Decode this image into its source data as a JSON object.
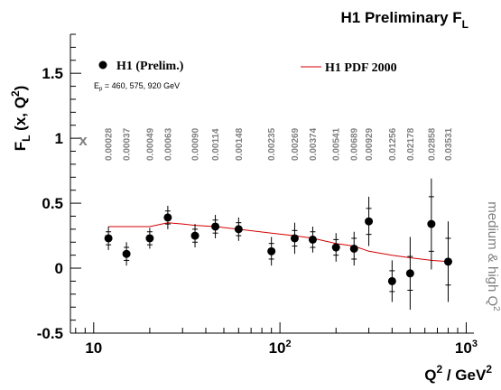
{
  "chart_data": {
    "type": "scatter",
    "title": "H1 Preliminary F",
    "title_sub": "L",
    "xlabel": {
      "base": "Q",
      "sup1": "2",
      "mid": " / GeV",
      "sup2": "2"
    },
    "ylabel": {
      "base": "F",
      "sub": "L",
      "rest": " (x, Q",
      "sup": "2",
      "end": ")"
    },
    "x_scale": "log",
    "xlim": [
      7.5,
      1100
    ],
    "ylim": [
      -0.5,
      1.8
    ],
    "x_ticks": [
      {
        "value": 10,
        "label": "10"
      },
      {
        "value": 100,
        "label": "10",
        "sup": "2"
      },
      {
        "value": 1000,
        "label": "10",
        "sup": "3"
      }
    ],
    "y_ticks": [
      {
        "value": -0.5,
        "label": "-0.5"
      },
      {
        "value": 0,
        "label": "0"
      },
      {
        "value": 0.5,
        "label": "0.5"
      },
      {
        "value": 1,
        "label": "1"
      },
      {
        "value": 1.5,
        "label": "1.5"
      }
    ],
    "x_values_label": "x",
    "side_label": {
      "text": "medium & high Q",
      "sup": "2"
    },
    "grid": false,
    "legend_position": "top",
    "colors": {
      "data": "#000000",
      "pdf": "#d40000",
      "annotation": "#808080"
    },
    "series": [
      {
        "name": "H1 (Prelim.)",
        "kind": "points",
        "sublabel": "E",
        "sublabel_sub": "p",
        "sublabel_rest": " = 460, 575, 920 GeV",
        "points": [
          {
            "q2": 12,
            "xbj": "0.00028",
            "fl": 0.23,
            "stat": 0.05,
            "tot": 0.09
          },
          {
            "q2": 15,
            "xbj": "0.00037",
            "fl": 0.11,
            "stat": 0.05,
            "tot": 0.09
          },
          {
            "q2": 20,
            "xbj": "0.00049",
            "fl": 0.23,
            "stat": 0.05,
            "tot": 0.08
          },
          {
            "q2": 25,
            "xbj": "0.00063",
            "fl": 0.39,
            "stat": 0.05,
            "tot": 0.09
          },
          {
            "q2": 35,
            "xbj": "0.00090",
            "fl": 0.25,
            "stat": 0.05,
            "tot": 0.09
          },
          {
            "q2": 45,
            "xbj": "0.00114",
            "fl": 0.32,
            "stat": 0.05,
            "tot": 0.09
          },
          {
            "q2": 60,
            "xbj": "0.00148",
            "fl": 0.3,
            "stat": 0.05,
            "tot": 0.09
          },
          {
            "q2": 90,
            "xbj": "0.00235",
            "fl": 0.13,
            "stat": 0.06,
            "tot": 0.11
          },
          {
            "q2": 120,
            "xbj": "0.00269",
            "fl": 0.23,
            "stat": 0.06,
            "tot": 0.12
          },
          {
            "q2": 150,
            "xbj": "0.00374",
            "fl": 0.22,
            "stat": 0.06,
            "tot": 0.1
          },
          {
            "q2": 200,
            "xbj": "0.00541",
            "fl": 0.16,
            "stat": 0.06,
            "tot": 0.11
          },
          {
            "q2": 250,
            "xbj": "0.00689",
            "fl": 0.15,
            "stat": 0.08,
            "tot": 0.13
          },
          {
            "q2": 300,
            "xbj": "0.00929",
            "fl": 0.36,
            "stat": 0.1,
            "tot": 0.19
          },
          {
            "q2": 400,
            "xbj": "0.01256",
            "fl": -0.1,
            "stat": 0.08,
            "tot": 0.16
          },
          {
            "q2": 500,
            "xbj": "0.02178",
            "fl": -0.04,
            "stat": 0.13,
            "tot": 0.28
          },
          {
            "q2": 650,
            "xbj": "0.02858",
            "fl": 0.34,
            "stat": 0.21,
            "tot": 0.35
          },
          {
            "q2": 800,
            "xbj": "0.03531",
            "fl": 0.05,
            "stat": 0.18,
            "tot": 0.31
          }
        ]
      },
      {
        "name": "H1 PDF 2000",
        "kind": "line",
        "x": [
          12,
          15,
          20,
          25,
          30,
          35,
          45,
          60,
          90,
          120,
          150,
          200,
          250,
          300,
          400,
          500,
          650,
          800
        ],
        "y": [
          0.32,
          0.32,
          0.32,
          0.35,
          0.34,
          0.33,
          0.32,
          0.3,
          0.27,
          0.25,
          0.23,
          0.19,
          0.17,
          0.13,
          0.1,
          0.08,
          0.06,
          0.05
        ]
      }
    ]
  }
}
